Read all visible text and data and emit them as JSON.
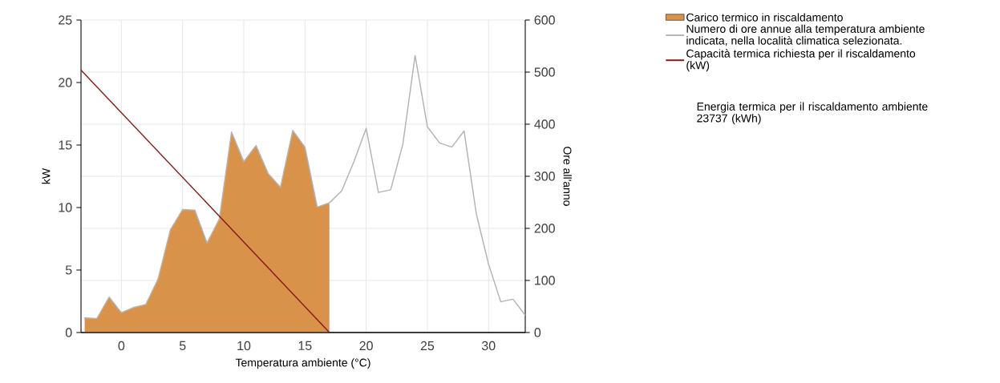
{
  "chart_data": {
    "type": "line",
    "xlabel": "Temperatura ambiente (°C)",
    "ylabel": "kW",
    "y2label": "Ore all'anno",
    "annotations": [
      "Energia termica per il riscaldamento ambiente 23737 (kWh)"
    ],
    "xlim": [
      -3.3,
      33
    ],
    "xticks": [
      0,
      5,
      10,
      15,
      20,
      25,
      30
    ],
    "ylim": [
      0,
      25
    ],
    "yticks": [
      0,
      5,
      10,
      15,
      20,
      25
    ],
    "y2lim": [
      0,
      600
    ],
    "y2ticks": [
      0,
      100,
      200,
      300,
      400,
      500,
      600
    ],
    "grid": true,
    "legend": "right",
    "series": [
      {
        "name": "Carico termico in riscaldamento",
        "type": "area",
        "axis": "y2",
        "color": "#d9924a",
        "x": [
          -3,
          -2,
          -1,
          0,
          1,
          2,
          3,
          4,
          5,
          6,
          7,
          8,
          9,
          10,
          11,
          12,
          13,
          14,
          15,
          16,
          17
        ],
        "values": [
          28,
          27,
          68,
          38,
          48,
          54,
          103,
          197,
          236,
          235,
          172,
          218,
          385,
          328,
          359,
          305,
          279,
          388,
          356,
          241,
          249
        ]
      },
      {
        "name": "Numero di ore annue alla temperatura ambiente indicata, nella località climatica selezionata.",
        "type": "line",
        "axis": "y2",
        "color": "#b4b4b4",
        "x": [
          -3,
          -2,
          -1,
          0,
          1,
          2,
          3,
          4,
          5,
          6,
          7,
          8,
          9,
          10,
          11,
          12,
          13,
          14,
          15,
          16,
          17,
          18,
          19,
          20,
          21,
          22,
          23,
          24,
          25,
          26,
          27,
          28,
          29,
          30,
          31,
          32,
          33
        ],
        "values": [
          28,
          27,
          68,
          38,
          48,
          54,
          103,
          197,
          236,
          235,
          172,
          218,
          385,
          328,
          359,
          305,
          279,
          388,
          356,
          241,
          249,
          272,
          328,
          392,
          269,
          274,
          362,
          532,
          395,
          364,
          356,
          387,
          228,
          131,
          59,
          64,
          33
        ]
      },
      {
        "name": "Capacità termica richiesta per il riscaldamento (kW)",
        "type": "line",
        "axis": "y",
        "color": "#8b1a1a",
        "x": [
          -3.3,
          17
        ],
        "values": [
          21,
          0
        ]
      }
    ]
  }
}
